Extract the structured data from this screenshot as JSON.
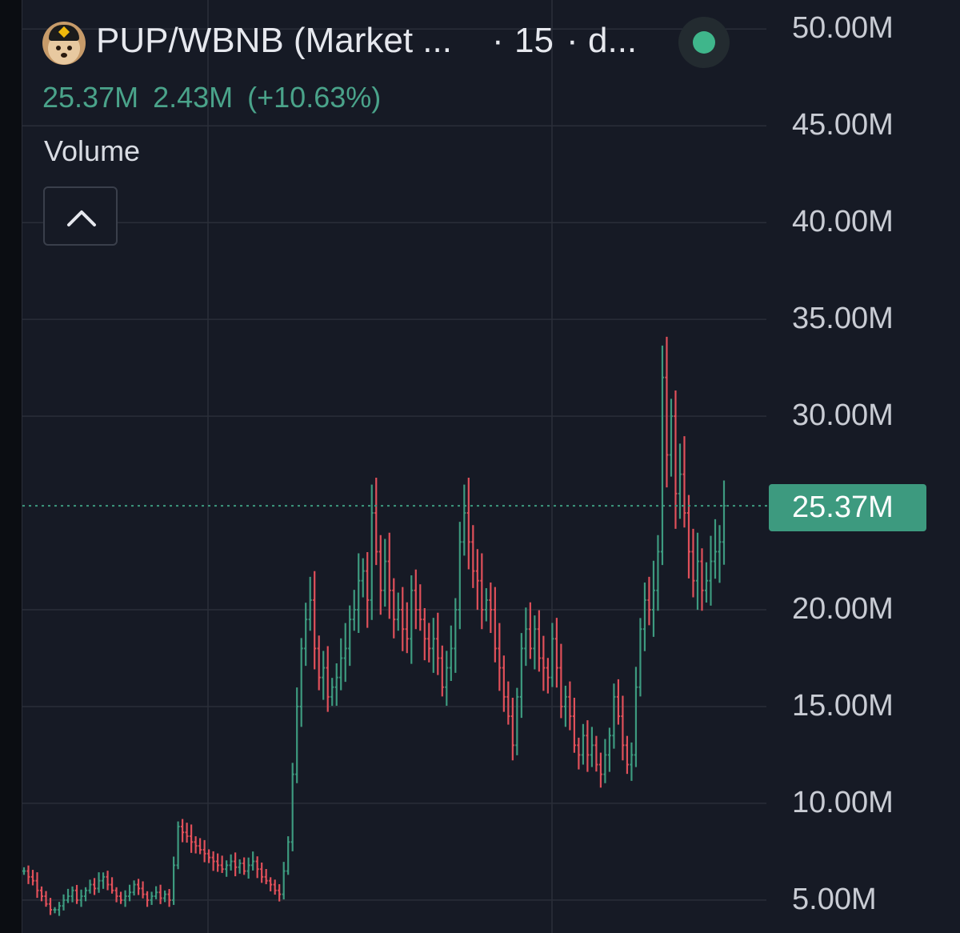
{
  "header": {
    "pair": "PUP/WBNB (Market ...",
    "interval": "15",
    "more": "d...",
    "avatar_icon": "pup-dog-avatar-icon",
    "status_icon": "live-status-dot-icon"
  },
  "values": {
    "current": "25.37M",
    "change": "2.43M",
    "change_pct": "(+10.63%)"
  },
  "indicator": {
    "label": "Volume",
    "collapse_icon": "chevron-up-icon"
  },
  "colors": {
    "up": "#3d9a7f",
    "down": "#e0505a",
    "background": "#161a25",
    "grid": "#2a2e39",
    "value_text": "#4aa38a"
  },
  "chart_data": {
    "type": "bar",
    "ylim": [
      3.3,
      51.5
    ],
    "y_ticks": [
      "50.00M",
      "45.00M",
      "40.00M",
      "35.00M",
      "30.00M",
      "25.37M",
      "20.00M",
      "15.00M",
      "10.00M",
      "5.00M"
    ],
    "last_value": 25.37,
    "last_value_label": "25.37M",
    "grid": true,
    "series": [
      {
        "values": [
          6.5,
          6.2,
          6.0,
          5.5,
          5.2,
          4.8,
          4.5,
          4.5,
          4.7,
          5.0,
          5.2,
          5.5,
          5.0,
          5.2,
          5.5,
          5.8,
          5.6,
          6.0,
          6.2,
          5.8,
          5.5,
          5.2,
          5.0,
          5.2,
          5.4,
          5.8,
          5.6,
          5.3,
          5.0,
          5.2,
          5.4,
          5.1,
          5.3,
          5.0,
          6.8,
          8.8,
          8.5,
          8.3,
          8.0,
          7.8,
          7.6,
          7.4,
          7.2,
          7.0,
          6.8,
          6.6,
          6.8,
          7.0,
          6.7,
          6.9,
          6.5,
          6.8,
          7.0,
          6.6,
          6.2,
          6.0,
          5.8,
          5.5,
          5.3,
          6.5,
          8.0,
          11.5,
          15.0,
          18.0,
          19.5,
          20.5,
          18.0,
          16.5,
          17.0,
          15.5,
          16.0,
          16.5,
          17.5,
          18.0,
          19.5,
          20.0,
          21.5,
          22.0,
          20.5,
          25.0,
          23.0,
          21.0,
          22.5,
          21.0,
          19.5,
          20.0,
          19.0,
          18.5,
          21.0,
          20.0,
          19.5,
          18.5,
          18.0,
          18.5,
          17.5,
          16.0,
          17.0,
          18.0,
          20.0,
          23.5,
          25.0,
          23.5,
          22.0,
          21.5,
          20.0,
          20.5,
          20.0,
          18.0,
          17.0,
          15.5,
          14.5,
          13.0,
          15.5,
          18.0,
          19.0,
          18.0,
          19.0,
          17.5,
          17.0,
          16.5,
          18.5,
          17.0,
          15.0,
          15.5,
          14.5,
          13.0,
          12.5,
          13.5,
          12.5,
          13.0,
          12.0,
          11.5,
          12.5,
          13.5,
          15.5,
          14.5,
          13.0,
          12.0,
          12.5,
          16.0,
          19.0,
          20.5,
          20.0,
          21.0,
          23.0,
          32.0,
          28.0,
          30.0,
          26.0,
          27.0,
          25.0,
          23.0,
          21.5,
          22.5,
          21.0,
          21.5,
          22.5,
          23.0,
          23.5,
          25.37
        ]
      }
    ]
  }
}
